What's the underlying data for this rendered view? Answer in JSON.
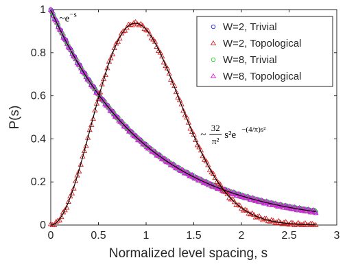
{
  "chart_data": {
    "type": "scatter",
    "xlabel": "Normalized level spacing, s",
    "ylabel": "P(s)",
    "xlim": [
      0,
      3
    ],
    "ylim": [
      0,
      1
    ],
    "xticks": [
      "0",
      "0.5",
      "1",
      "1.5",
      "2",
      "2.5",
      "3"
    ],
    "yticks": [
      "0",
      "0.2",
      "0.4",
      "0.6",
      "0.8",
      "1"
    ],
    "grid": false,
    "legend_position": "top-right",
    "series": [
      {
        "name": "W=2, Trivial",
        "marker": "circle",
        "color": "#1f1fd6",
        "formula": "poisson",
        "x_max": 2.78
      },
      {
        "name": "W=2, Topological",
        "marker": "triangle",
        "color": "#d42020",
        "formula": "wigner",
        "x_max": 2.78
      },
      {
        "name": "W=8, Trivial",
        "marker": "circle",
        "color": "#2ecc2e",
        "formula": "poisson",
        "x_max": 2.78
      },
      {
        "name": "W=8, Topological",
        "marker": "triangle",
        "color": "#e020e0",
        "formula": "poisson",
        "x_max": 2.78
      }
    ],
    "fit_curves": [
      {
        "formula": "poisson",
        "color": "#000000",
        "x_range": [
          0,
          2.78
        ]
      },
      {
        "formula": "wigner",
        "color": "#000000",
        "x_range": [
          0,
          2.78
        ]
      }
    ],
    "annotations": [
      {
        "prefix": "~e",
        "exponent": "−s",
        "at": [
          0.09,
          0.945
        ]
      },
      {
        "prefix": "~",
        "numerator": "32",
        "denominator": "π²",
        "body": "s²e",
        "exponent": "−(4/π)s²",
        "at": [
          1.57,
          0.42
        ]
      }
    ]
  }
}
